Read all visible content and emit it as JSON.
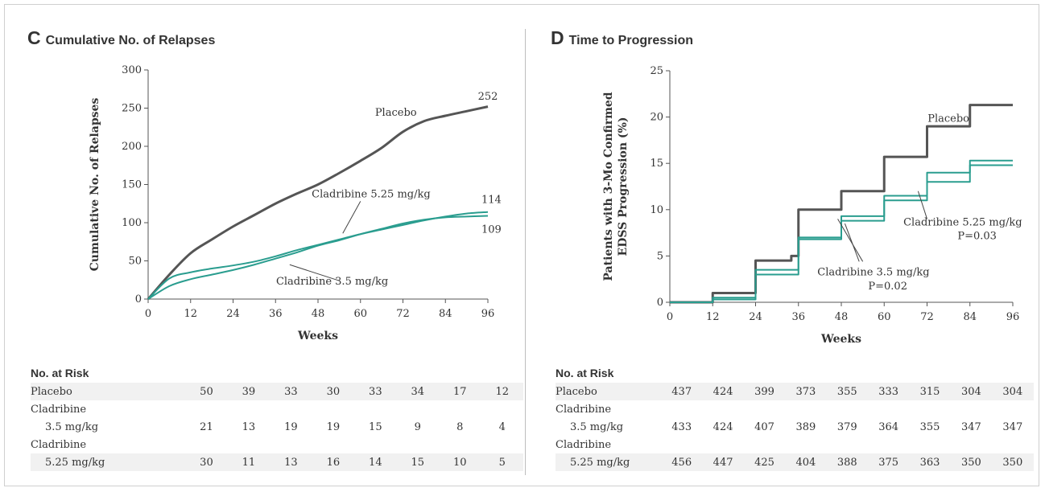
{
  "panels": {
    "c": {
      "letter": "C",
      "title": "Cumulative No. of Relapses",
      "chart_data": {
        "type": "line",
        "title": "Cumulative No. of Relapses",
        "xlabel": "Weeks",
        "ylabel": "Cumulative No. of Relapses",
        "xlim": [
          0,
          96
        ],
        "ylim": [
          0,
          300
        ],
        "x_ticks": [
          0,
          12,
          24,
          36,
          48,
          60,
          72,
          84,
          96
        ],
        "y_ticks": [
          0,
          50,
          100,
          150,
          200,
          250,
          300
        ],
        "grid": false,
        "series": [
          {
            "name": "Placebo",
            "color": "#555555",
            "x": [
              0,
              6,
              12,
              18,
              24,
              30,
              36,
              42,
              48,
              54,
              60,
              66,
              72,
              78,
              84,
              90,
              96
            ],
            "y": [
              0,
              32,
              60,
              78,
              95,
              110,
              125,
              138,
              150,
              165,
              181,
              198,
              219,
              233,
              240,
              246,
              252
            ]
          },
          {
            "name": "Cladribine 5.25 mg/kg",
            "color": "#2a9d8f",
            "x": [
              0,
              6,
              12,
              18,
              24,
              30,
              36,
              42,
              48,
              54,
              60,
              66,
              72,
              78,
              84,
              90,
              96
            ],
            "y": [
              0,
              27,
              35,
              40,
              44,
              49,
              56,
              64,
              71,
              78,
              85,
              91,
              97,
              103,
              108,
              112,
              114
            ]
          },
          {
            "name": "Cladribine 3.5 mg/kg",
            "color": "#2a9d8f",
            "x": [
              0,
              6,
              12,
              18,
              24,
              30,
              36,
              42,
              48,
              54,
              60,
              66,
              72,
              78,
              84,
              90,
              96
            ],
            "y": [
              0,
              17,
              26,
              32,
              38,
              45,
              53,
              61,
              70,
              77,
              85,
              92,
              99,
              104,
              107,
              108,
              109
            ]
          }
        ],
        "annotations": [
          {
            "text": "Placebo",
            "x": 70,
            "y": 240
          },
          {
            "text": "252",
            "x": 96,
            "y": 261
          },
          {
            "text": "Cladribine 5.25 mg/kg",
            "x": 63,
            "y": 133
          },
          {
            "text": "114",
            "x": 97,
            "y": 126
          },
          {
            "text": "109",
            "x": 97,
            "y": 87
          },
          {
            "text": "Cladribine 3.5 mg/kg",
            "x": 52,
            "y": 19
          }
        ]
      },
      "risk": {
        "header": "No. at Risk",
        "rows": [
          {
            "label": [
              "Placebo"
            ],
            "values": [
              "50",
              "39",
              "33",
              "30",
              "33",
              "34",
              "17",
              "12"
            ]
          },
          {
            "label": [
              "Cladribine",
              "3.5 mg/kg"
            ],
            "values": [
              "21",
              "13",
              "19",
              "19",
              "15",
              "9",
              "8",
              "4"
            ]
          },
          {
            "label": [
              "Cladribine",
              "5.25 mg/kg"
            ],
            "values": [
              "30",
              "11",
              "13",
              "16",
              "14",
              "15",
              "10",
              "5"
            ]
          }
        ]
      }
    },
    "d": {
      "letter": "D",
      "title": "Time to Progression",
      "chart_data": {
        "type": "line",
        "step": true,
        "title": "Time to Progression",
        "xlabel": "Weeks",
        "ylabel": [
          "Patients with 3-Mo Confirmed",
          "EDSS Progression (%)"
        ],
        "xlim": [
          0,
          96
        ],
        "ylim": [
          0,
          25
        ],
        "x_ticks": [
          0,
          12,
          24,
          36,
          48,
          60,
          72,
          84,
          96
        ],
        "y_ticks": [
          0,
          5,
          10,
          15,
          20,
          25
        ],
        "grid": false,
        "series": [
          {
            "name": "Placebo",
            "color": "#555555",
            "x": [
              0,
              12,
              24,
              34,
              36,
              48,
              60,
              72,
              84,
              96
            ],
            "y": [
              0,
              1.0,
              4.5,
              5.0,
              10.0,
              12.0,
              15.7,
              19.0,
              21.3,
              21.3
            ]
          },
          {
            "name": "Cladribine 5.25 mg/kg",
            "color": "#2a9d8f",
            "x": [
              0,
              12,
              24,
              36,
              48,
              60,
              72,
              84,
              96
            ],
            "y": [
              0,
              0.3,
              3.5,
              7.0,
              9.3,
              11.5,
              14.0,
              15.3,
              15.3
            ]
          },
          {
            "name": "Cladribine 3.5 mg/kg",
            "color": "#2a9d8f",
            "x": [
              0,
              12,
              24,
              36,
              48,
              60,
              72,
              84,
              96
            ],
            "y": [
              0,
              0.5,
              3.0,
              6.8,
              8.8,
              11.0,
              13.0,
              14.8,
              14.8
            ]
          }
        ],
        "annotations": [
          {
            "text": "Placebo",
            "x": 78,
            "y": 19.5
          },
          {
            "text": "Cladribine 5.25 mg/kg",
            "x": 82,
            "y": 8.3
          },
          {
            "text": "P=0.03",
            "x": 86,
            "y": 6.8
          },
          {
            "text": "Cladribine 3.5 mg/kg",
            "x": 57,
            "y": 2.9
          },
          {
            "text": "P=0.02",
            "x": 61,
            "y": 1.4
          }
        ]
      },
      "risk": {
        "header": "No. at Risk",
        "rows": [
          {
            "label": [
              "Placebo"
            ],
            "values": [
              "437",
              "424",
              "399",
              "373",
              "355",
              "333",
              "315",
              "304",
              "304"
            ]
          },
          {
            "label": [
              "Cladribine",
              "3.5 mg/kg"
            ],
            "values": [
              "433",
              "424",
              "407",
              "389",
              "379",
              "364",
              "355",
              "347",
              "347"
            ]
          },
          {
            "label": [
              "Cladribine",
              "5.25 mg/kg"
            ],
            "values": [
              "456",
              "447",
              "425",
              "404",
              "388",
              "375",
              "363",
              "350",
              "350"
            ]
          }
        ]
      }
    }
  }
}
